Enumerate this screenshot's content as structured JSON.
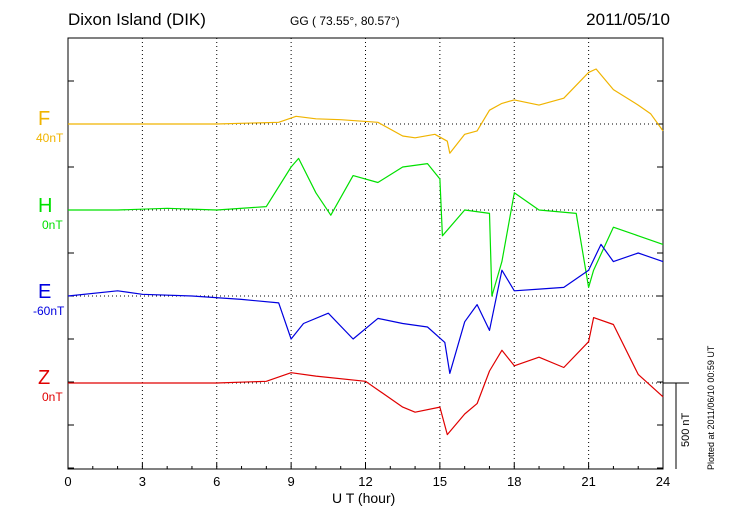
{
  "header": {
    "station": "Dixon Island (DIK)",
    "coords": "GG ( 73.55°,  80.57°)",
    "date": "2011/05/10"
  },
  "plotted_note": "Plotted at 2011/06/10 00:59 UT",
  "scale_label": "500 nT",
  "channels": [
    {
      "name": "F",
      "offset": "40nT",
      "color": "#f0b400"
    },
    {
      "name": "H",
      "offset": "0nT",
      "color": "#00e000"
    },
    {
      "name": "E",
      "offset": "-60nT",
      "color": "#0000e0"
    },
    {
      "name": "Z",
      "offset": "0nT",
      "color": "#e00000"
    }
  ],
  "chart_data": {
    "type": "line",
    "xlabel": "U T (hour)",
    "xlim": [
      0,
      24
    ],
    "x_ticks": [
      0,
      3,
      6,
      9,
      12,
      15,
      18,
      21,
      24
    ],
    "scale_bar_nT": 500,
    "series": [
      {
        "name": "F",
        "color": "#f0b400",
        "x": [
          0,
          2,
          4,
          6,
          8.5,
          9.2,
          10,
          11,
          12.5,
          13.5,
          14,
          14.8,
          15.3,
          15.4,
          16,
          16.5,
          17,
          17.5,
          18,
          19,
          20,
          21,
          21.3,
          22,
          23,
          23.5,
          24
        ],
        "y": [
          0,
          0,
          0,
          0,
          10,
          45,
          30,
          25,
          10,
          -70,
          -80,
          -60,
          -100,
          -170,
          -60,
          -40,
          80,
          120,
          140,
          110,
          150,
          300,
          320,
          200,
          110,
          60,
          -40
        ]
      },
      {
        "name": "H",
        "color": "#00e000",
        "x": [
          0,
          2,
          4,
          6,
          8,
          9,
          9.3,
          10,
          10.6,
          11.5,
          12.5,
          13.5,
          14.5,
          15,
          15.1,
          16,
          17,
          17.1,
          17.5,
          18,
          19,
          20.5,
          21,
          21.2,
          22,
          23,
          24
        ],
        "y": [
          0,
          0,
          10,
          0,
          20,
          250,
          300,
          100,
          -30,
          200,
          160,
          250,
          270,
          180,
          -150,
          0,
          -20,
          -500,
          -300,
          100,
          0,
          -20,
          -450,
          -350,
          -100,
          -150,
          -200
        ]
      },
      {
        "name": "E",
        "color": "#0000e0",
        "x": [
          0,
          2,
          3,
          5,
          7,
          8.5,
          9,
          9.5,
          10.5,
          11.5,
          12.5,
          13.5,
          14.5,
          15.2,
          15.4,
          16,
          16.5,
          17,
          17.5,
          18,
          19,
          20,
          21,
          21.5,
          22,
          23,
          24
        ],
        "y": [
          0,
          30,
          10,
          0,
          -20,
          -40,
          -250,
          -160,
          -100,
          -250,
          -130,
          -160,
          -180,
          -270,
          -450,
          -150,
          -50,
          -200,
          150,
          30,
          40,
          50,
          150,
          300,
          200,
          250,
          200
        ]
      },
      {
        "name": "Z",
        "color": "#e00000",
        "x": [
          0,
          2,
          4,
          6,
          8,
          9,
          10,
          12,
          12.8,
          13.5,
          14,
          15,
          15.3,
          16,
          16.5,
          17,
          17.5,
          18,
          19,
          20,
          21,
          21.2,
          22,
          23,
          24
        ],
        "y": [
          0,
          0,
          0,
          0,
          10,
          60,
          40,
          10,
          -70,
          -140,
          -170,
          -140,
          -300,
          -180,
          -120,
          70,
          190,
          100,
          150,
          90,
          240,
          380,
          340,
          50,
          -80
        ]
      }
    ]
  }
}
